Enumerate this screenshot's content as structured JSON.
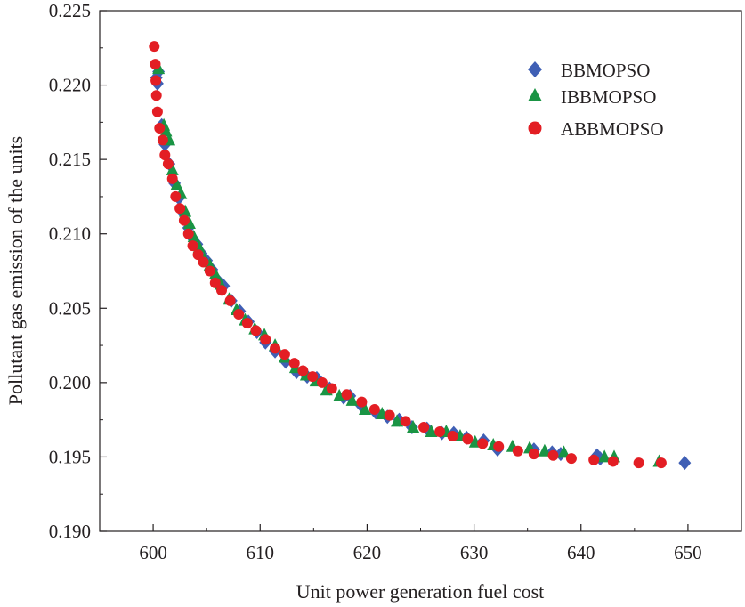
{
  "chart_data": {
    "type": "scatter",
    "title": "",
    "xlabel": "Unit power generation fuel cost",
    "ylabel": "Pollutant gas emission of the units",
    "xlim": [
      595,
      655
    ],
    "ylim": [
      0.19,
      0.225
    ],
    "xticks": [
      600,
      610,
      620,
      630,
      640,
      650
    ],
    "yticks": [
      0.19,
      0.195,
      0.2,
      0.205,
      0.21,
      0.215,
      0.22,
      0.225
    ],
    "xtick_labels": [
      "600",
      "610",
      "620",
      "630",
      "640",
      "650"
    ],
    "ytick_labels": [
      "0.190",
      "0.195",
      "0.200",
      "0.205",
      "0.210",
      "0.215",
      "0.220",
      "0.225"
    ],
    "grid": false,
    "legend_position": "top-right",
    "series": [
      {
        "name": "BBMOPSO",
        "marker": "diamond",
        "color": "#3f5fb5",
        "x": [
          600.3,
          600.4,
          600.5,
          600.8,
          601.1,
          601.5,
          602.0,
          602.4,
          602.9,
          603.3,
          603.7,
          604.1,
          604.5,
          605.0,
          605.5,
          606.0,
          606.6,
          607.3,
          608.1,
          608.9,
          609.7,
          610.5,
          611.4,
          612.4,
          613.4,
          614.4,
          615.3,
          616.5,
          617.8,
          618.4,
          619.4,
          620.8,
          621.9,
          623.0,
          624.2,
          625.6,
          627.0,
          628.1,
          629.3,
          630.9,
          632.2,
          635.6,
          637.3,
          638.1,
          641.5,
          641.8,
          649.7
        ],
        "y": [
          0.2205,
          0.2201,
          0.2209,
          0.2173,
          0.216,
          0.2147,
          0.2134,
          0.2124,
          0.2113,
          0.2104,
          0.2097,
          0.2093,
          0.2087,
          0.2082,
          0.2076,
          0.2069,
          0.2065,
          0.2055,
          0.2048,
          0.2041,
          0.2034,
          0.2027,
          0.2021,
          0.2014,
          0.2007,
          0.2004,
          0.2003,
          0.1996,
          0.199,
          0.1991,
          0.1985,
          0.198,
          0.1977,
          0.1975,
          0.197,
          0.1969,
          0.1966,
          0.1966,
          0.1963,
          0.1961,
          0.1955,
          0.1955,
          0.1953,
          0.1952,
          0.1951,
          0.1949,
          0.1946
        ]
      },
      {
        "name": "IBBMOPSO",
        "marker": "triangle",
        "color": "#1a9444",
        "x": [
          600.5,
          601.0,
          601.2,
          601.5,
          601.8,
          602.2,
          602.6,
          603.0,
          603.4,
          603.8,
          604.3,
          604.8,
          605.3,
          605.8,
          606.3,
          607.1,
          607.8,
          608.6,
          609.5,
          610.4,
          611.4,
          612.3,
          613.3,
          614.3,
          615.2,
          616.2,
          617.4,
          618.6,
          619.8,
          621.4,
          622.8,
          624.3,
          626.0,
          627.4,
          628.7,
          630.1,
          631.8,
          633.6,
          635.2,
          636.6,
          638.4,
          642.2,
          643.1,
          647.3
        ],
        "y": [
          0.2211,
          0.2173,
          0.2169,
          0.2163,
          0.2143,
          0.2133,
          0.2127,
          0.2115,
          0.2107,
          0.2098,
          0.2091,
          0.2083,
          0.2079,
          0.2073,
          0.2066,
          0.2056,
          0.2049,
          0.2042,
          0.2036,
          0.2032,
          0.2025,
          0.2017,
          0.201,
          0.2005,
          0.2001,
          0.1995,
          0.1991,
          0.1988,
          0.1982,
          0.1979,
          0.1974,
          0.197,
          0.1967,
          0.1967,
          0.1964,
          0.196,
          0.1958,
          0.1957,
          0.1956,
          0.1954,
          0.1953,
          0.195,
          0.195,
          0.1947
        ]
      },
      {
        "name": "ABBMOPSO",
        "marker": "circle",
        "color": "#e31e24",
        "x": [
          600.1,
          600.2,
          600.25,
          600.3,
          600.4,
          600.6,
          600.9,
          601.1,
          601.4,
          601.8,
          602.1,
          602.5,
          602.9,
          603.3,
          603.7,
          604.2,
          604.7,
          605.3,
          605.8,
          606.4,
          607.2,
          608.0,
          608.8,
          609.6,
          610.5,
          611.4,
          612.3,
          613.2,
          614.0,
          614.9,
          615.8,
          616.7,
          618.1,
          619.5,
          620.7,
          622.1,
          623.6,
          625.3,
          626.8,
          628.0,
          629.4,
          630.8,
          632.3,
          634.1,
          635.6,
          637.4,
          639.1,
          641.2,
          643.0,
          645.4,
          647.5
        ],
        "y": [
          0.2226,
          0.2214,
          0.2203,
          0.2193,
          0.2182,
          0.2171,
          0.2163,
          0.2153,
          0.2147,
          0.2137,
          0.2125,
          0.2117,
          0.2109,
          0.21,
          0.2092,
          0.2086,
          0.2081,
          0.2075,
          0.2067,
          0.2062,
          0.2055,
          0.2046,
          0.204,
          0.2035,
          0.2029,
          0.2023,
          0.2019,
          0.2013,
          0.2008,
          0.2004,
          0.2,
          0.1996,
          0.1992,
          0.1987,
          0.1982,
          0.1978,
          0.1974,
          0.197,
          0.1967,
          0.1964,
          0.1962,
          0.1959,
          0.1957,
          0.1954,
          0.1952,
          0.1951,
          0.1949,
          0.1948,
          0.1947,
          0.1946,
          0.1946
        ]
      }
    ]
  }
}
